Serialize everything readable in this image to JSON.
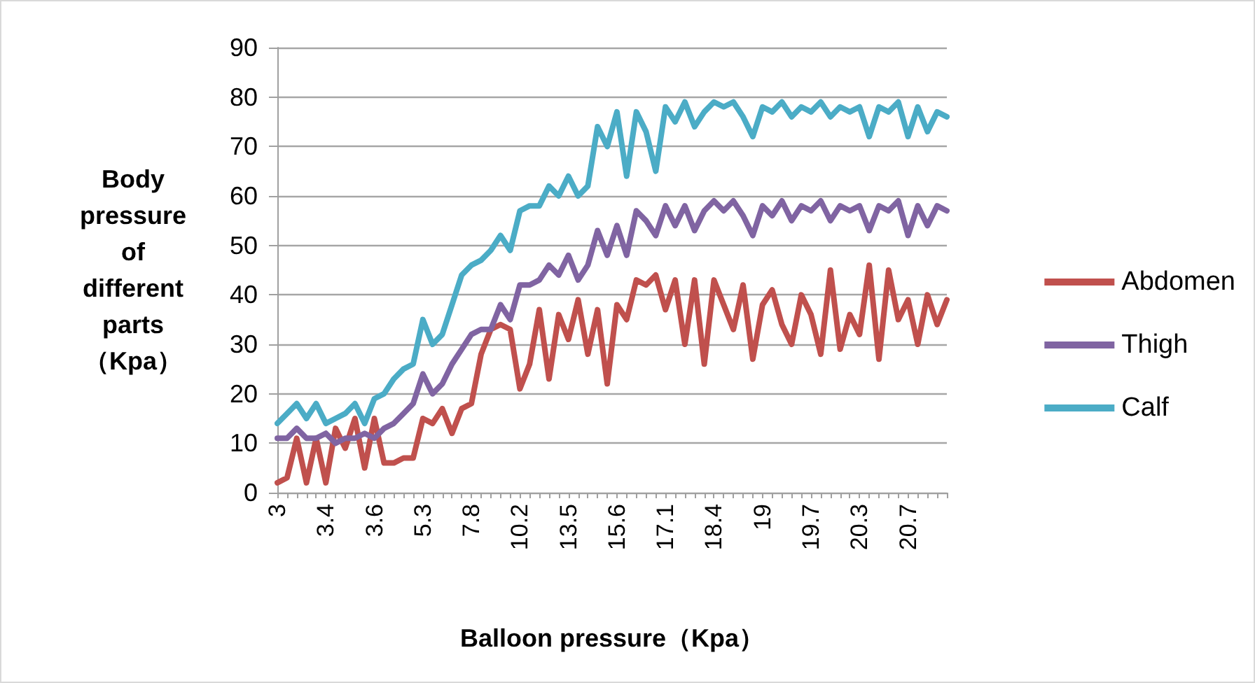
{
  "chart_data": {
    "type": "line",
    "xlabel": "Balloon pressure（Kpa）",
    "ylabel": "Body\npressure\nof\ndifferent\nparts\n（Kpa）",
    "categories": [
      "3",
      null,
      null,
      null,
      null,
      "3.4",
      null,
      null,
      null,
      null,
      "3.6",
      null,
      null,
      null,
      null,
      "5.3",
      null,
      null,
      null,
      null,
      "7.8",
      null,
      null,
      null,
      null,
      "10.2",
      null,
      null,
      null,
      null,
      "13.5",
      null,
      null,
      null,
      null,
      "15.6",
      null,
      null,
      null,
      null,
      "17.1",
      null,
      null,
      null,
      null,
      "18.4",
      null,
      null,
      null,
      null,
      "19",
      null,
      null,
      null,
      null,
      "19.7",
      null,
      null,
      null,
      null,
      "20.3",
      null,
      null,
      null,
      null,
      "20.7",
      null,
      null,
      null,
      null
    ],
    "series": [
      {
        "name": "Abdomen",
        "color": "#c0504d",
        "values": [
          2,
          3,
          11,
          2,
          11,
          2,
          13,
          9,
          15,
          5,
          15,
          6,
          6,
          7,
          7,
          15,
          14,
          17,
          12,
          17,
          18,
          28,
          33,
          34,
          33,
          21,
          26,
          37,
          23,
          36,
          31,
          39,
          28,
          37,
          22,
          38,
          35,
          43,
          42,
          44,
          37,
          43,
          30,
          43,
          26,
          43,
          38,
          33,
          42,
          27,
          38,
          41,
          34,
          30,
          40,
          36,
          28,
          45,
          29,
          36,
          32,
          46,
          27,
          45,
          35,
          39,
          30,
          40,
          34,
          39
        ]
      },
      {
        "name": "Thigh",
        "color": "#8064a2",
        "values": [
          11,
          11,
          13,
          11,
          11,
          12,
          10,
          11,
          11,
          12,
          11,
          13,
          14,
          16,
          18,
          24,
          20,
          22,
          26,
          29,
          32,
          33,
          33,
          38,
          35,
          42,
          42,
          43,
          46,
          44,
          48,
          43,
          46,
          53,
          48,
          54,
          48,
          57,
          55,
          52,
          58,
          54,
          58,
          53,
          57,
          59,
          57,
          59,
          56,
          52,
          58,
          56,
          59,
          55,
          58,
          57,
          59,
          55,
          58,
          57,
          58,
          53,
          58,
          57,
          59,
          52,
          58,
          54,
          58,
          57
        ]
      },
      {
        "name": "Calf",
        "color": "#4bacc6",
        "values": [
          14,
          16,
          18,
          15,
          18,
          14,
          15,
          16,
          18,
          14,
          19,
          20,
          23,
          25,
          26,
          35,
          30,
          32,
          38,
          44,
          46,
          47,
          49,
          52,
          49,
          57,
          58,
          58,
          62,
          60,
          64,
          60,
          62,
          74,
          70,
          77,
          64,
          77,
          73,
          65,
          78,
          75,
          79,
          74,
          77,
          79,
          78,
          79,
          76,
          72,
          78,
          77,
          79,
          76,
          78,
          77,
          79,
          76,
          78,
          77,
          78,
          72,
          78,
          77,
          79,
          72,
          78,
          73,
          77,
          76
        ]
      }
    ],
    "ylim": [
      0,
      90
    ],
    "yticks": [
      0,
      10,
      20,
      30,
      40,
      50,
      60,
      70,
      80,
      90
    ],
    "grid": "y",
    "legend": "right",
    "marker": "none",
    "line_style": "solid"
  }
}
